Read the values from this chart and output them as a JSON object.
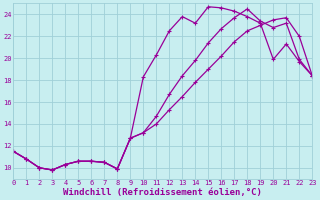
{
  "xlabel": "Windchill (Refroidissement éolien,°C)",
  "bg_color": "#c8eef0",
  "grid_color": "#a0d0d8",
  "line_color": "#990099",
  "xlim": [
    0,
    23
  ],
  "ylim": [
    9,
    25
  ],
  "xticks": [
    0,
    1,
    2,
    3,
    4,
    5,
    6,
    7,
    8,
    9,
    10,
    11,
    12,
    13,
    14,
    15,
    16,
    17,
    18,
    19,
    20,
    21,
    22,
    23
  ],
  "yticks": [
    10,
    12,
    14,
    16,
    18,
    20,
    22,
    24
  ],
  "curve1_x": [
    0,
    1,
    2,
    3,
    4,
    5,
    6,
    7,
    8,
    9,
    10,
    11,
    12,
    13,
    14,
    15,
    16,
    17,
    18,
    19,
    20,
    21,
    22,
    23
  ],
  "curve1_y": [
    11.5,
    10.8,
    10.0,
    9.8,
    10.3,
    10.6,
    10.6,
    10.5,
    9.9,
    12.7,
    18.3,
    20.3,
    22.5,
    23.8,
    23.2,
    24.7,
    24.6,
    24.3,
    23.8,
    23.2,
    19.9,
    21.3,
    19.7,
    18.4
  ],
  "curve2_x": [
    0,
    1,
    2,
    3,
    4,
    5,
    6,
    7,
    8,
    9,
    10,
    11,
    12,
    13,
    14,
    15,
    16,
    17,
    18,
    19,
    20,
    21,
    22,
    23
  ],
  "curve2_y": [
    11.5,
    10.8,
    10.0,
    9.8,
    10.3,
    10.6,
    10.6,
    10.5,
    9.9,
    12.7,
    13.2,
    14.7,
    16.7,
    18.4,
    19.8,
    21.4,
    22.7,
    23.7,
    24.5,
    23.4,
    22.8,
    23.2,
    19.9,
    18.4
  ],
  "curve3_x": [
    0,
    1,
    2,
    3,
    4,
    5,
    6,
    7,
    8,
    9,
    10,
    11,
    12,
    13,
    14,
    15,
    16,
    17,
    18,
    19,
    20,
    21,
    22,
    23
  ],
  "curve3_y": [
    11.5,
    10.8,
    10.0,
    9.8,
    10.3,
    10.6,
    10.6,
    10.5,
    9.9,
    12.7,
    13.2,
    14.0,
    15.3,
    16.5,
    17.8,
    19.0,
    20.2,
    21.5,
    22.5,
    23.0,
    23.5,
    23.7,
    22.0,
    18.4
  ],
  "marker": "+",
  "markersize": 3,
  "markeredgewidth": 0.8,
  "linewidth": 0.9,
  "xlabel_fontsize": 6.5,
  "tick_fontsize": 5.0
}
